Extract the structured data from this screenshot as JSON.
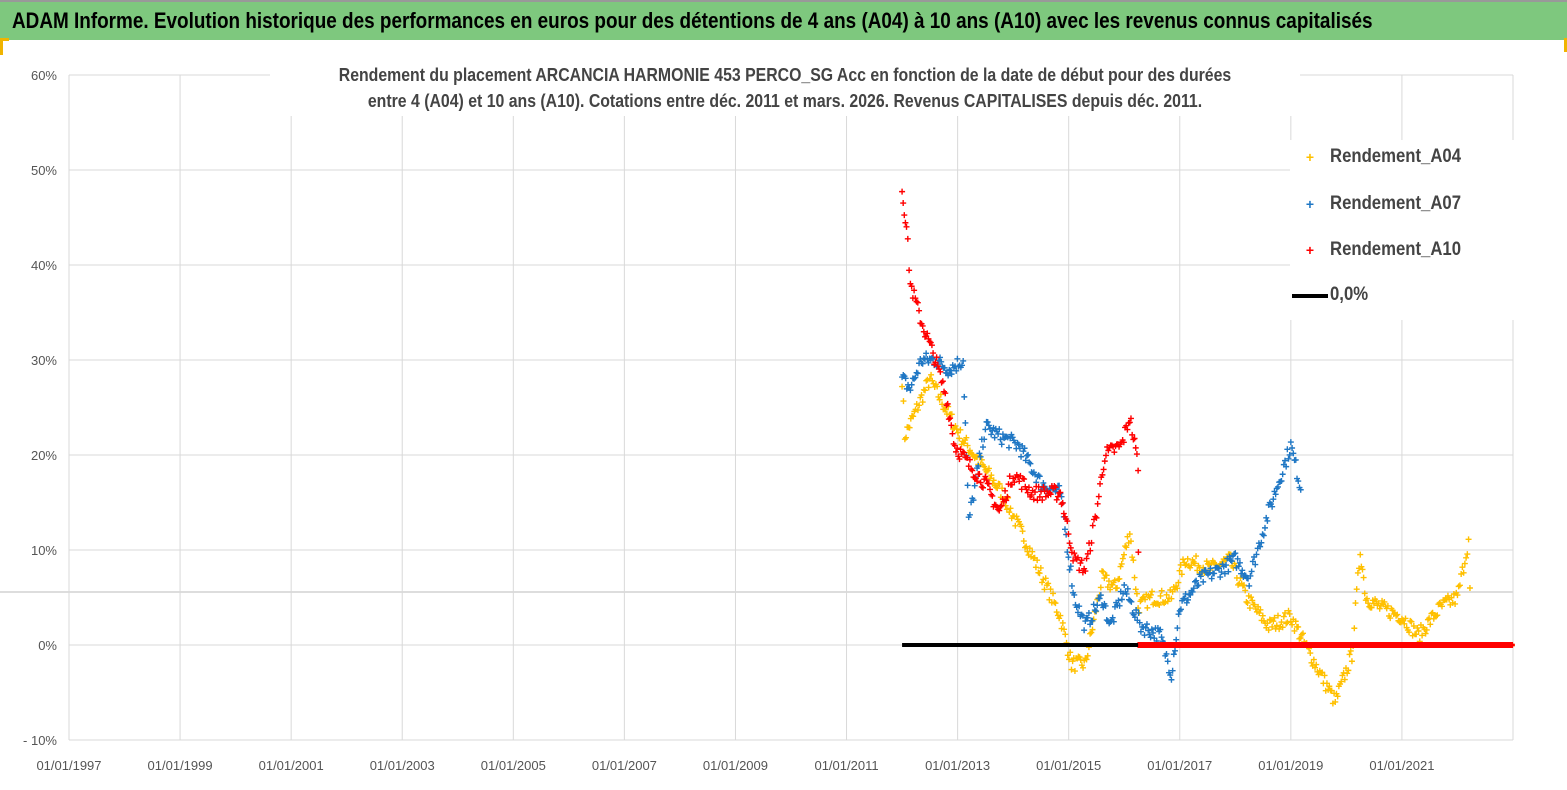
{
  "header": {
    "title": "ADAM Informe. Evolution historique des performances en euros pour des détentions de 4 ans (A04) à 10 ans (A10) avec les revenus connus capitalisés"
  },
  "chart_data": {
    "type": "scatter",
    "title_line1": "Rendement du placement ARCANCIA HARMONIE 453 PERCO_SG Acc en fonction de la date de début pour des durées",
    "title_line2": "entre 4 (A04) et 10 ans (A10). Cotations entre déc. 2011 et mars. 2026. Revenus CAPITALISES depuis déc. 2011.",
    "xlim": [
      1997,
      2023
    ],
    "ylim": [
      -10,
      60
    ],
    "x_tick_labels": [
      "01/01/1997",
      "01/01/1999",
      "01/01/2001",
      "01/01/2003",
      "01/01/2005",
      "01/01/2007",
      "01/01/2009",
      "01/01/2011",
      "01/01/2013",
      "01/01/2015",
      "01/01/2017",
      "01/01/2019",
      "01/01/2021"
    ],
    "x_ticks": [
      1997,
      1999,
      2001,
      2003,
      2005,
      2007,
      2009,
      2011,
      2013,
      2015,
      2017,
      2019,
      2021
    ],
    "y_ticks": [
      -10,
      0,
      10,
      20,
      30,
      40,
      50,
      60
    ],
    "y_tick_labels": [
      "- 10%",
      "0%",
      "10%",
      "20%",
      "30%",
      "40%",
      "50%",
      "60%"
    ],
    "grid": true,
    "legend_position": "top-right",
    "series": [
      {
        "name": "Rendement_A04",
        "color": "#ffc000",
        "marker": "+",
        "points": [
          [
            2012.0,
            28
          ],
          [
            2012.05,
            22
          ],
          [
            2012.5,
            28
          ],
          [
            2013.05,
            22
          ],
          [
            2013.8,
            16
          ],
          [
            2014.3,
            10
          ],
          [
            2014.85,
            3
          ],
          [
            2015.05,
            -2
          ],
          [
            2015.3,
            -2
          ],
          [
            2015.6,
            7
          ],
          [
            2015.85,
            6
          ],
          [
            2016.1,
            12
          ],
          [
            2016.25,
            4
          ],
          [
            2016.5,
            5
          ],
          [
            2016.85,
            5
          ],
          [
            2017.1,
            9
          ],
          [
            2017.55,
            8
          ],
          [
            2017.9,
            9
          ],
          [
            2018.2,
            5
          ],
          [
            2018.6,
            2
          ],
          [
            2019.0,
            3
          ],
          [
            2019.35,
            -1
          ],
          [
            2019.8,
            -6
          ],
          [
            2020.1,
            -1
          ],
          [
            2020.25,
            10
          ],
          [
            2020.35,
            5
          ],
          [
            2020.6,
            4
          ],
          [
            2021.0,
            3
          ],
          [
            2021.3,
            1
          ],
          [
            2021.7,
            4
          ],
          [
            2022.0,
            5
          ],
          [
            2022.2,
            11
          ],
          [
            2022.25,
            0
          ],
          [
            2023.0,
            0
          ]
        ]
      },
      {
        "name": "Rendement_A07",
        "color": "#1f77c4",
        "marker": "+",
        "points": [
          [
            2012.0,
            28
          ],
          [
            2012.15,
            27
          ],
          [
            2012.35,
            30
          ],
          [
            2012.6,
            30
          ],
          [
            2012.85,
            29
          ],
          [
            2013.1,
            30
          ],
          [
            2013.2,
            13
          ],
          [
            2013.5,
            23
          ],
          [
            2013.75,
            22
          ],
          [
            2014.1,
            21
          ],
          [
            2014.5,
            17
          ],
          [
            2014.85,
            16
          ],
          [
            2015.1,
            5
          ],
          [
            2015.3,
            2
          ],
          [
            2015.6,
            5
          ],
          [
            2015.75,
            2
          ],
          [
            2016.0,
            6
          ],
          [
            2016.3,
            2
          ],
          [
            2016.65,
            1
          ],
          [
            2016.85,
            -3
          ],
          [
            2017.0,
            4
          ],
          [
            2017.4,
            7
          ],
          [
            2017.75,
            8
          ],
          [
            2018.0,
            9
          ],
          [
            2018.25,
            7
          ],
          [
            2018.6,
            14
          ],
          [
            2019.0,
            21
          ],
          [
            2019.2,
            16
          ]
        ]
      },
      {
        "name": "Rendement_A10",
        "color": "#ff0000",
        "marker": "+",
        "points": [
          [
            2012.0,
            48
          ],
          [
            2012.08,
            44
          ],
          [
            2012.15,
            38
          ],
          [
            2012.35,
            34
          ],
          [
            2012.6,
            30
          ],
          [
            2012.8,
            26
          ],
          [
            2012.95,
            21
          ],
          [
            2013.2,
            19
          ],
          [
            2013.5,
            17
          ],
          [
            2013.75,
            14
          ],
          [
            2014.0,
            18
          ],
          [
            2014.35,
            16
          ],
          [
            2014.85,
            16
          ],
          [
            2015.1,
            9
          ],
          [
            2015.3,
            8
          ],
          [
            2015.5,
            14
          ],
          [
            2015.65,
            20
          ],
          [
            2015.95,
            21
          ],
          [
            2016.1,
            24
          ],
          [
            2016.25,
            19
          ],
          [
            2016.26,
            0
          ],
          [
            2023.0,
            0
          ]
        ]
      },
      {
        "name": "0,0%",
        "color": "#000000",
        "marker": "line",
        "points": [
          [
            2012.0,
            0
          ],
          [
            2016.25,
            0
          ]
        ]
      }
    ]
  }
}
